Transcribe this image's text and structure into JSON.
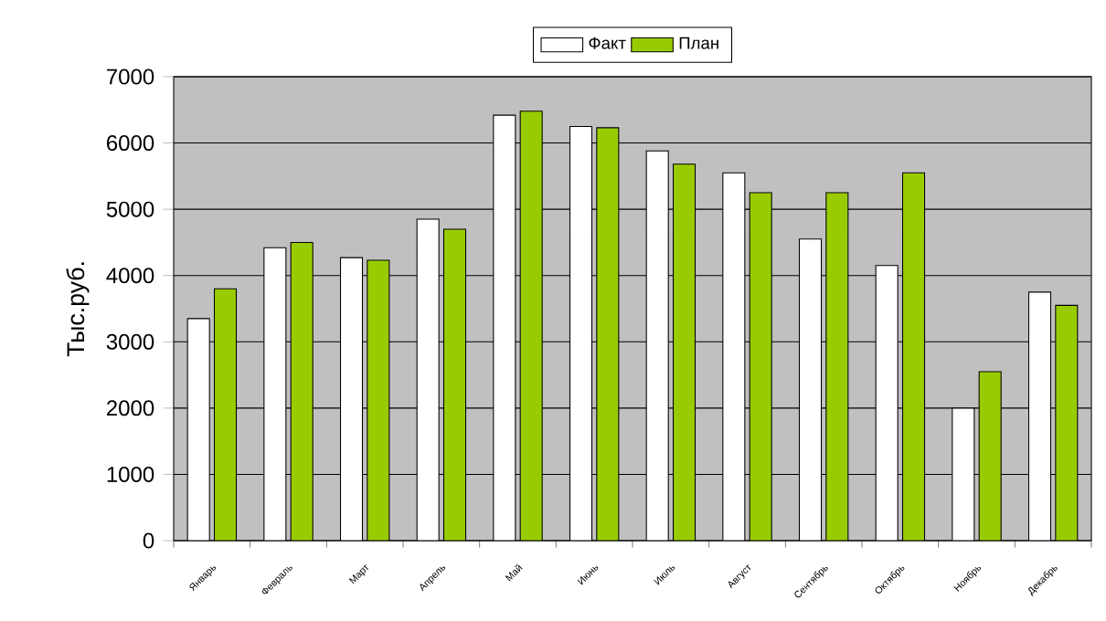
{
  "chart_data": {
    "type": "bar",
    "ylabel": "Тыс.руб.",
    "categories": [
      "Январь",
      "Февраль",
      "Март",
      "Апрель",
      "Май",
      "Июнь",
      "Июль",
      "Август",
      "Сентябрь",
      "Октябрь",
      "Ноябрь",
      "Декабрь"
    ],
    "series": [
      {
        "name": "Факт",
        "color": "#ffffff",
        "values": [
          3350,
          4420,
          4270,
          4850,
          6420,
          6250,
          5880,
          5550,
          4550,
          4150,
          2000,
          3750
        ]
      },
      {
        "name": "План",
        "color": "#99cc00",
        "values": [
          3800,
          4500,
          4230,
          4700,
          6480,
          6230,
          5680,
          5250,
          5250,
          5550,
          2550,
          3550
        ]
      }
    ],
    "ylim": [
      0,
      7000
    ],
    "yticks": [
      0,
      1000,
      2000,
      3000,
      4000,
      5000,
      6000,
      7000
    ],
    "grid": "y",
    "legend": "top"
  }
}
